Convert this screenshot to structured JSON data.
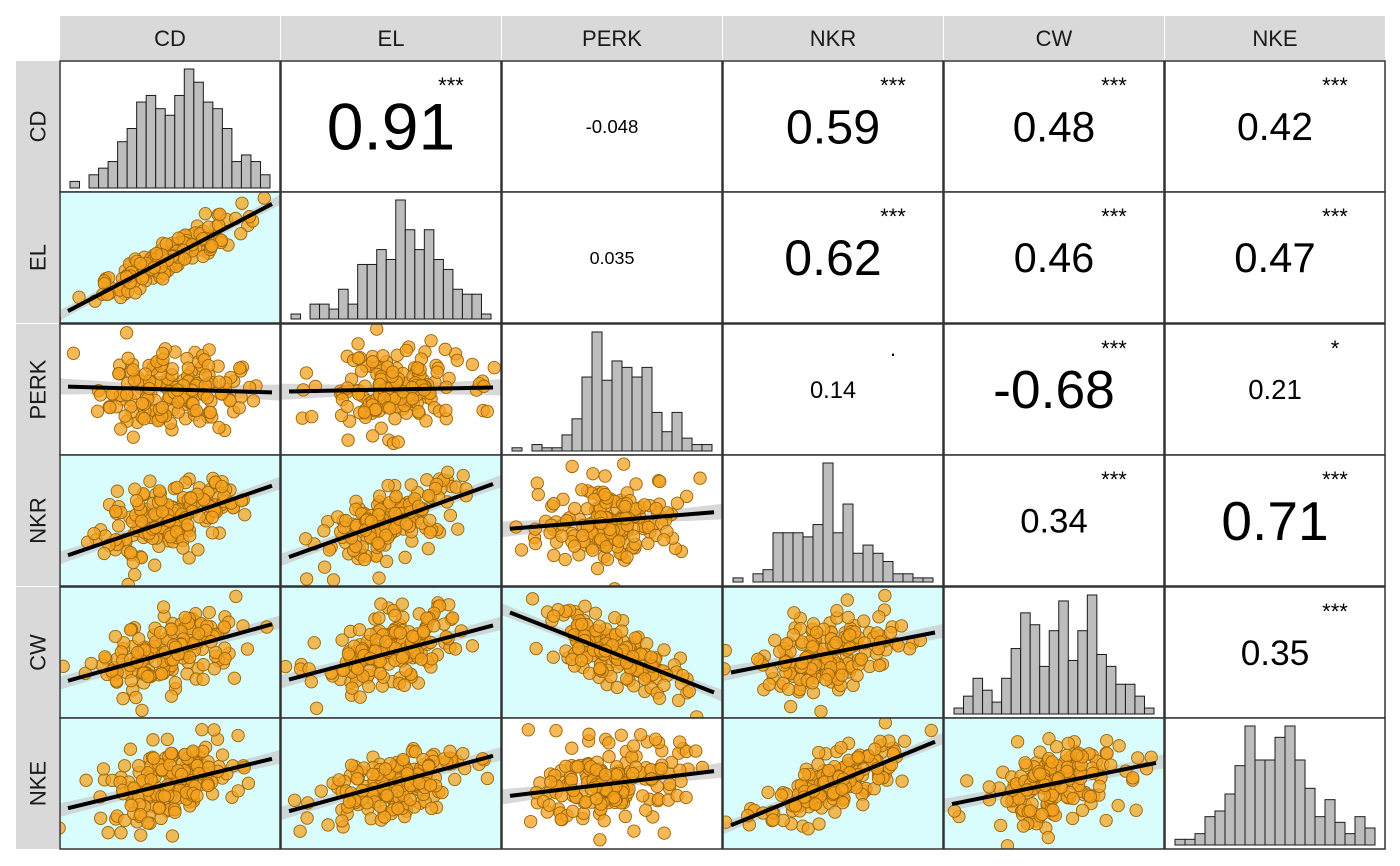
{
  "chart_data": {
    "type": "scatterplot-matrix",
    "variables": [
      "CD",
      "EL",
      "PERK",
      "NKR",
      "CW",
      "NKE"
    ],
    "correlations": [
      {
        "row": "CD",
        "col": "EL",
        "label": "0.91",
        "value": 0.91,
        "sig": "***"
      },
      {
        "row": "CD",
        "col": "PERK",
        "label": "-0.048",
        "value": -0.048,
        "sig": ""
      },
      {
        "row": "CD",
        "col": "NKR",
        "label": "0.59",
        "value": 0.59,
        "sig": "***"
      },
      {
        "row": "CD",
        "col": "CW",
        "label": "0.48",
        "value": 0.48,
        "sig": "***"
      },
      {
        "row": "CD",
        "col": "NKE",
        "label": "0.42",
        "value": 0.42,
        "sig": "***"
      },
      {
        "row": "EL",
        "col": "PERK",
        "label": "0.035",
        "value": 0.035,
        "sig": ""
      },
      {
        "row": "EL",
        "col": "NKR",
        "label": "0.62",
        "value": 0.62,
        "sig": "***"
      },
      {
        "row": "EL",
        "col": "CW",
        "label": "0.46",
        "value": 0.46,
        "sig": "***"
      },
      {
        "row": "EL",
        "col": "NKE",
        "label": "0.47",
        "value": 0.47,
        "sig": "***"
      },
      {
        "row": "PERK",
        "col": "NKR",
        "label": "0.14",
        "value": 0.14,
        "sig": "."
      },
      {
        "row": "PERK",
        "col": "CW",
        "label": "-0.68",
        "value": -0.68,
        "sig": "***"
      },
      {
        "row": "PERK",
        "col": "NKE",
        "label": "0.21",
        "value": 0.21,
        "sig": "*"
      },
      {
        "row": "NKR",
        "col": "CW",
        "label": "0.34",
        "value": 0.34,
        "sig": "***"
      },
      {
        "row": "NKR",
        "col": "NKE",
        "label": "0.71",
        "value": 0.71,
        "sig": "***"
      },
      {
        "row": "CW",
        "col": "NKE",
        "label": "0.35",
        "value": 0.35,
        "sig": "***"
      }
    ],
    "histograms": {
      "CD": [
        1,
        0,
        2,
        3,
        4,
        7,
        9,
        13,
        14,
        12,
        11,
        14,
        18,
        16,
        13,
        12,
        9,
        4,
        5,
        4,
        2
      ],
      "EL": [
        1,
        0,
        3,
        3,
        2,
        6,
        3,
        11,
        11,
        14,
        12,
        24,
        18,
        14,
        18,
        12,
        10,
        6,
        5,
        5,
        1
      ],
      "PERK": [
        1,
        0,
        2,
        1,
        1,
        5,
        10,
        23,
        37,
        22,
        28,
        26,
        23,
        26,
        12,
        6,
        12,
        4,
        2,
        2
      ],
      "NKR": [
        1,
        0,
        2,
        3,
        12,
        12,
        12,
        11,
        14,
        29,
        12,
        19,
        7,
        9,
        7,
        5,
        2,
        2,
        1,
        1
      ],
      "CW": [
        1,
        3,
        6,
        4,
        2,
        6,
        11,
        17,
        15,
        8,
        14,
        19,
        9,
        14,
        20,
        10,
        8,
        5,
        5,
        3,
        1
      ],
      "NKE": [
        1,
        1,
        2,
        5,
        6,
        9,
        14,
        21,
        15,
        15,
        19,
        21,
        15,
        10,
        5,
        8,
        4,
        2,
        5,
        3
      ]
    },
    "scatter_panels": {
      "fill": "#f4a21f",
      "stroke": "#9a6508",
      "fit_line_color": "#000000",
      "confidence_band_color": "#c8c8c8",
      "significant_background": "#d9fdfd"
    },
    "strip_background": "#d9d9d9",
    "panel_border": "#333333"
  }
}
